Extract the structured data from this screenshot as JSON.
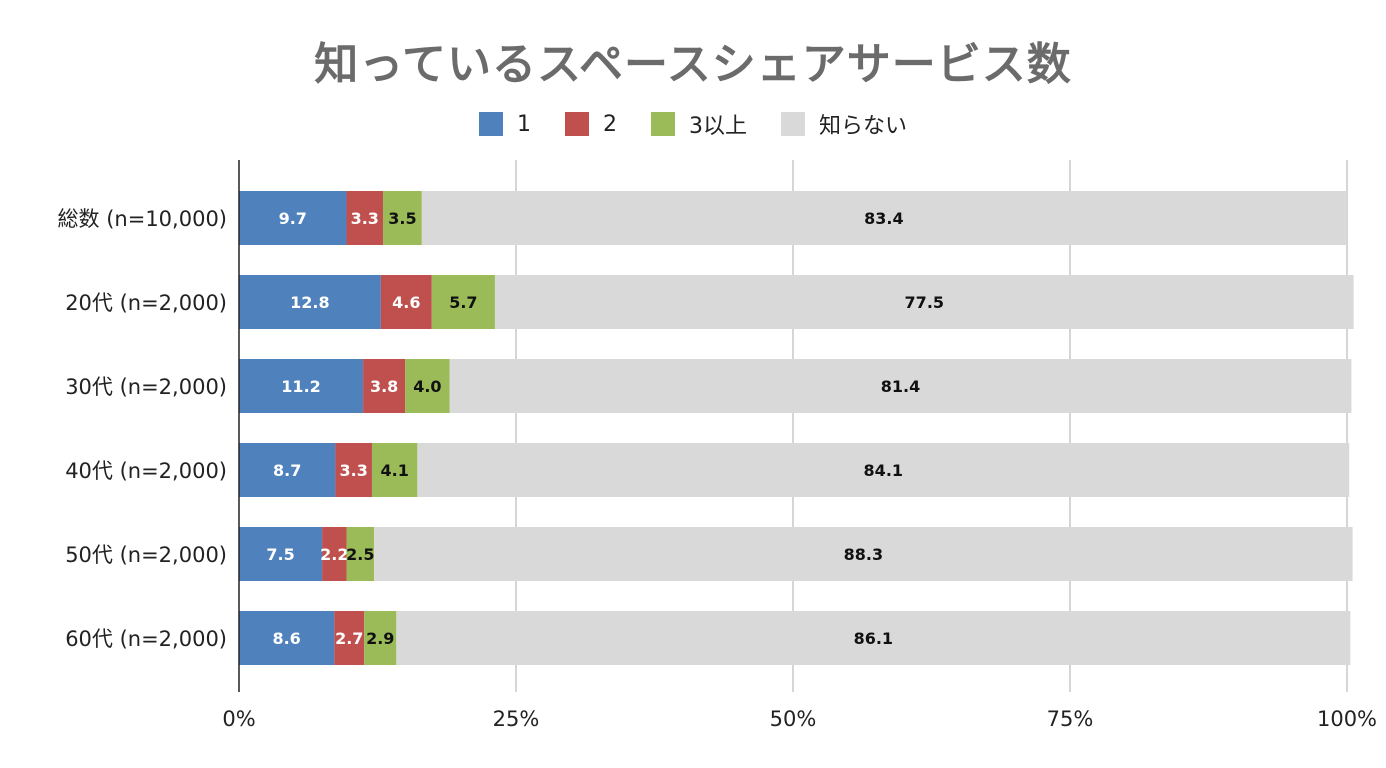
{
  "chart_data": {
    "type": "bar",
    "orientation": "horizontal",
    "stacked": true,
    "title": "知っているスペースシェアサービス数",
    "categories": [
      "総数 (n=10,000)",
      "20代 (n=2,000)",
      "30代 (n=2,000)",
      "40代 (n=2,000)",
      "50代 (n=2,000)",
      "60代 (n=2,000)"
    ],
    "series": [
      {
        "name": "1",
        "color": "#4f81bd",
        "label_color": "#ffffff",
        "values": [
          9.7,
          12.8,
          11.2,
          8.7,
          7.5,
          8.6
        ]
      },
      {
        "name": "2",
        "color": "#c0504d",
        "label_color": "#ffffff",
        "values": [
          3.3,
          4.6,
          3.8,
          3.3,
          2.2,
          2.7
        ]
      },
      {
        "name": "3以上",
        "color": "#9bbb59",
        "label_color": "#111111",
        "values": [
          3.5,
          5.7,
          4.0,
          4.1,
          2.5,
          2.9
        ]
      },
      {
        "name": "知らない",
        "color": "#d9d9d9",
        "label_color": "#111111",
        "values": [
          83.4,
          77.5,
          81.4,
          84.1,
          88.3,
          86.1
        ]
      }
    ],
    "x_ticks": [
      "0%",
      "25%",
      "50%",
      "75%",
      "100%"
    ],
    "xlim": [
      0,
      100
    ],
    "grid": true,
    "legend_position": "top"
  }
}
